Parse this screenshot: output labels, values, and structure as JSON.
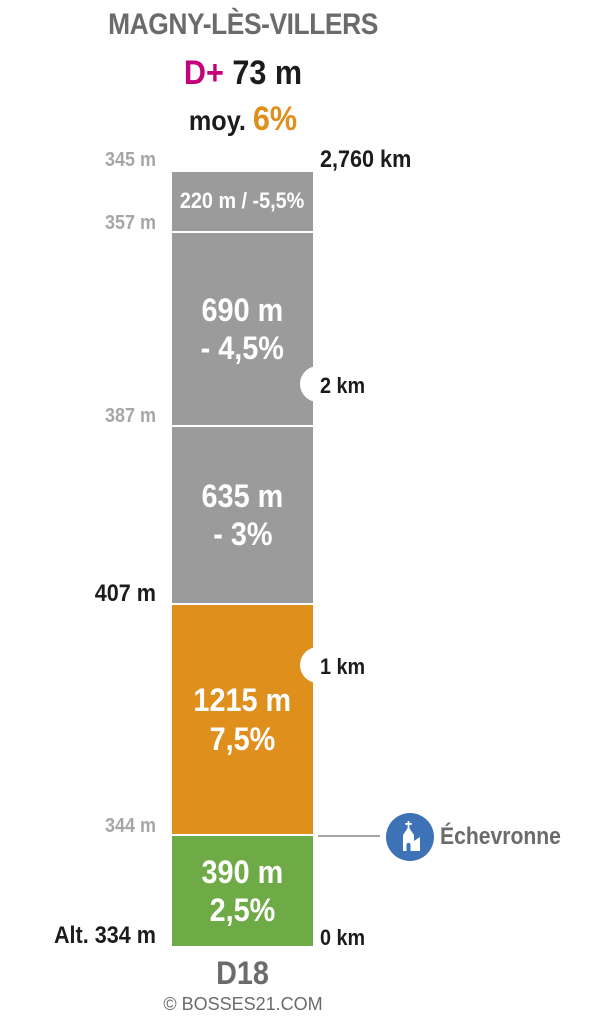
{
  "header": {
    "title": "MAGNY-LÈS-VILLERS",
    "dplus_label": "D+",
    "dplus_value": "73 m",
    "avg_label": "moy.",
    "avg_value": "6%"
  },
  "segments": [
    {
      "line1": "220 m / -5,5%",
      "line2": "",
      "color": "#9b9b9b"
    },
    {
      "line1": "690 m",
      "line2": "- 4,5%",
      "color": "#9b9b9b"
    },
    {
      "line1": "635 m",
      "line2": "- 3%",
      "color": "#9b9b9b"
    },
    {
      "line1": "1215 m",
      "line2": "7,5%",
      "color": "#df8f1b"
    },
    {
      "line1": "390 m",
      "line2": "2,5%",
      "color": "#6eaa46"
    }
  ],
  "altitudes": [
    "345 m",
    "357 m",
    "387 m",
    "407 m",
    "344 m",
    "Alt. 334 m"
  ],
  "km_markers": [
    "2,760 km",
    "2 km",
    "1 km",
    "0 km"
  ],
  "town": {
    "name": "Échevronne",
    "icon": "church-icon",
    "color": "#3d72b6"
  },
  "road": "D18",
  "copyright": "© BOSSES21.COM"
}
